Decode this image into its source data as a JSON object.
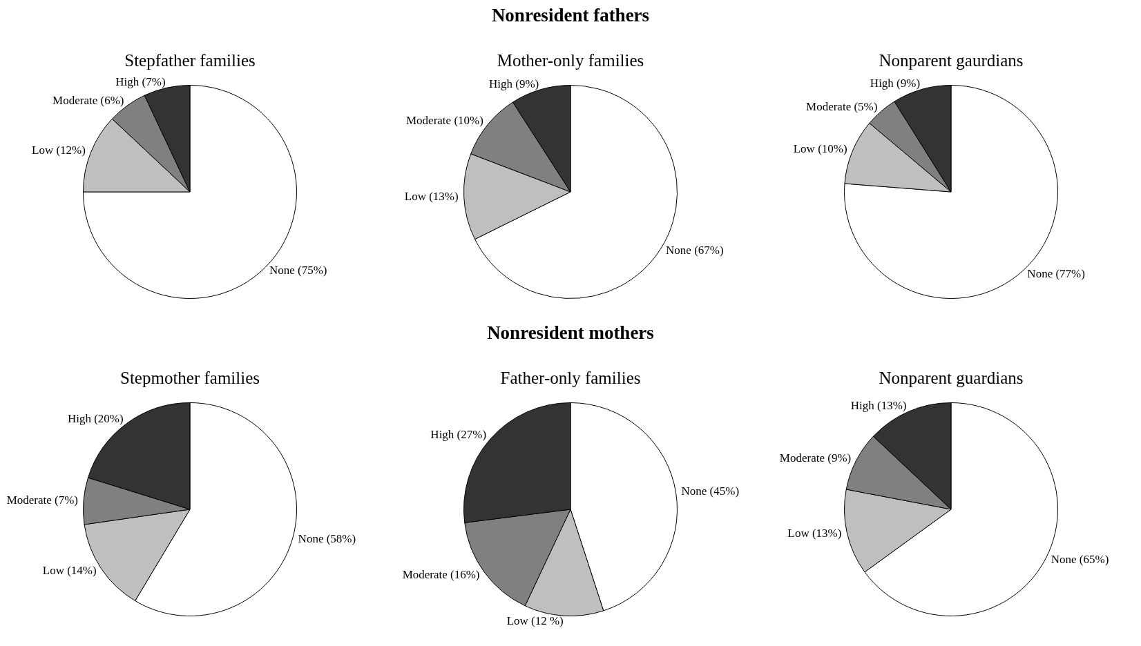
{
  "chart_data": [
    {
      "type": "pie",
      "title": "Stepfather families",
      "annotations": [
        "Nonresident fathers"
      ],
      "categories": [
        "None (75%)",
        "Low (12%)",
        "Moderate (6%)",
        "High (7%)"
      ],
      "values": [
        75,
        12,
        6,
        7
      ],
      "colors": [
        "#ffffff",
        "#bfbfbf",
        "#808080",
        "#333333"
      ]
    },
    {
      "type": "pie",
      "title": "Mother-only families",
      "categories": [
        "None (67%)",
        "Low (13%)",
        "Moderate (10%)",
        "High (9%)"
      ],
      "values": [
        67,
        13,
        10,
        9
      ],
      "colors": [
        "#ffffff",
        "#bfbfbf",
        "#808080",
        "#333333"
      ]
    },
    {
      "type": "pie",
      "title": "Nonparent gaurdians",
      "categories": [
        "None (77%)",
        "Low (10%)",
        "Moderate (5%)",
        "High (9%)"
      ],
      "values": [
        77,
        10,
        5,
        9
      ],
      "colors": [
        "#ffffff",
        "#bfbfbf",
        "#808080",
        "#333333"
      ]
    },
    {
      "type": "pie",
      "title": "Stepmother families",
      "annotations": [
        "Nonresident mothers"
      ],
      "categories": [
        "None (58%)",
        "Low (14%)",
        "Moderate (7%)",
        "High (20%)"
      ],
      "values": [
        58,
        14,
        7,
        20
      ],
      "colors": [
        "#ffffff",
        "#bfbfbf",
        "#808080",
        "#333333"
      ]
    },
    {
      "type": "pie",
      "title": "Father-only families",
      "categories": [
        "None (45%)",
        "Low (12 %)",
        "Moderate (16%)",
        "High (27%)"
      ],
      "values": [
        45,
        12,
        16,
        27
      ],
      "colors": [
        "#ffffff",
        "#bfbfbf",
        "#808080",
        "#333333"
      ]
    },
    {
      "type": "pie",
      "title": "Nonparent guardians",
      "categories": [
        "None (65%)",
        "Low (13%)",
        "Moderate (9%)",
        "High (13%)"
      ],
      "values": [
        65,
        13,
        9,
        13
      ],
      "colors": [
        "#ffffff",
        "#bfbfbf",
        "#808080",
        "#333333"
      ]
    }
  ]
}
